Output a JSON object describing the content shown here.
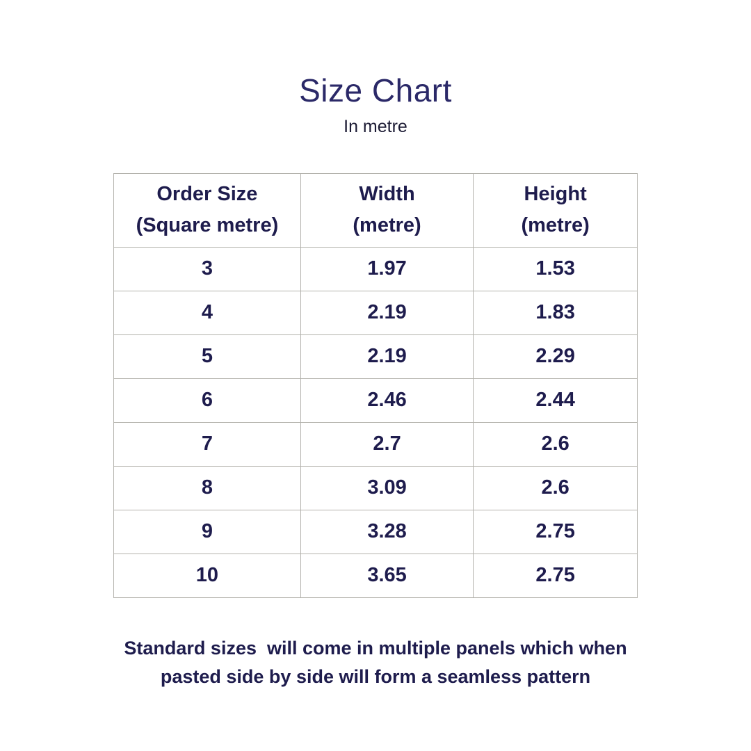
{
  "header": {
    "title": "Size Chart",
    "subtitle": "In metre"
  },
  "table": {
    "columns": [
      {
        "line1": "Order Size",
        "line2": "(Square metre)"
      },
      {
        "line1": "Width",
        "line2": "(metre)"
      },
      {
        "line1": "Height",
        "line2": "(metre)"
      }
    ],
    "rows": [
      [
        "3",
        "1.97",
        "1.53"
      ],
      [
        "4",
        "2.19",
        "1.83"
      ],
      [
        "5",
        "2.19",
        "2.29"
      ],
      [
        "6",
        "2.46",
        "2.44"
      ],
      [
        "7",
        "2.7",
        "2.6"
      ],
      [
        "8",
        "3.09",
        "2.6"
      ],
      [
        "9",
        "3.28",
        "2.75"
      ],
      [
        "10",
        "3.65",
        "2.75"
      ]
    ],
    "cell_names": [
      "order-size-cell",
      "width-cell",
      "height-cell"
    ]
  },
  "footer": {
    "note_line1": "Standard sizes  will come in multiple panels which when",
    "note_line2": "pasted side by side will form a seamless pattern"
  },
  "colors": {
    "title_text": "#2b2968",
    "subtitle_text": "#1b1a33",
    "table_text": "#1e1c4d",
    "table_border": "#b3b2ac",
    "background": "#ffffff"
  },
  "chart_data": {
    "type": "table",
    "title": "Size Chart",
    "subtitle": "In metre",
    "columns": [
      "Order Size (Square metre)",
      "Width (metre)",
      "Height (metre)"
    ],
    "rows": [
      [
        3,
        1.97,
        1.53
      ],
      [
        4,
        2.19,
        1.83
      ],
      [
        5,
        2.19,
        2.29
      ],
      [
        6,
        2.46,
        2.44
      ],
      [
        7,
        2.7,
        2.6
      ],
      [
        8,
        3.09,
        2.6
      ],
      [
        9,
        3.28,
        2.75
      ],
      [
        10,
        3.65,
        2.75
      ]
    ],
    "note": "Standard sizes  will come in multiple panels which when pasted side by side will form a seamless pattern"
  }
}
